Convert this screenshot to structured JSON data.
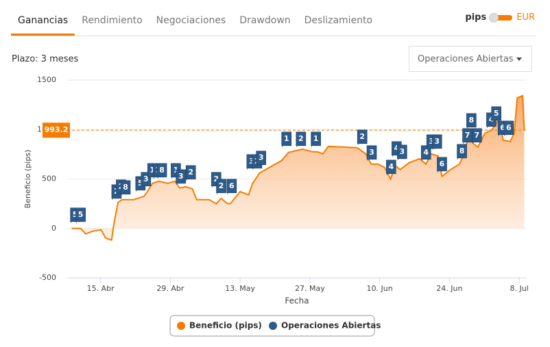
{
  "tabs": [
    "Ganancias",
    "Rendimiento",
    "Negociaciones",
    "Drawdown",
    "Deslizamiento"
  ],
  "toggle": {
    "left": "pips",
    "right": "EUR"
  },
  "period": {
    "label": "Plazo:",
    "value": "3 meses"
  },
  "dropdown": "Operaciones Abiertas",
  "chart_data": {
    "type": "area",
    "xlabel": "Fecha",
    "ylabel": "Beneficio (pips)",
    "x": [
      99.2,
      101,
      102,
      103.4,
      105.1,
      106,
      107.2,
      107.6,
      108.5,
      109.3,
      111.6,
      113.7,
      114.4,
      115.4,
      116.7,
      118.5,
      119.9,
      120.9,
      122,
      123.4,
      124.3,
      126.8,
      128.2,
      129.2,
      130.3,
      131,
      133,
      134.7,
      135.5,
      136.9,
      139.3,
      141.3,
      142.7,
      145.5,
      147.5,
      148.5,
      149.6,
      150.7,
      156.5,
      158.2,
      159.3,
      160.7,
      162,
      163.2,
      164.1,
      165.1,
      166.9,
      169,
      170.3,
      171.3,
      172.7,
      173.5,
      175.2,
      177,
      178,
      178.9,
      179.8,
      180.7,
      182.1,
      183.5,
      184.9,
      185.8,
      187.2,
      188,
      188.6,
      189.7,
      190
    ],
    "series": [
      {
        "name": "Beneficio (pips)",
        "color": "#f57c00",
        "values": [
          0,
          0,
          -55,
          -28,
          -14,
          -97,
          -118,
          28,
          263,
          290,
          290,
          325,
          373,
          456,
          477,
          456,
          477,
          408,
          422,
          401,
          290,
          290,
          249,
          304,
          256,
          249,
          373,
          339,
          456,
          560,
          629,
          685,
          768,
          802,
          775,
          775,
          754,
          830,
          816,
          754,
          650,
          650,
          615,
          498,
          636,
          595,
          664,
          705,
          650,
          754,
          733,
          525,
          595,
          650,
          754,
          961,
          857,
          823,
          961,
          996,
          1100,
          892,
          878,
          961,
          1321,
          1342,
          996
        ]
      }
    ],
    "flags": {
      "name": "Operaciones Abiertas",
      "color": "#2d5b8a",
      "x": [
        99.9,
        101,
        108.2,
        109.1,
        110,
        113,
        114.1,
        115.4,
        116.5,
        117.3,
        120.1,
        121.1,
        123.1,
        128.2,
        129.2,
        131.3,
        135.3,
        136.4,
        137.2,
        142.3,
        145.2,
        148.2,
        157.5,
        159.4,
        163.3,
        164.4,
        165.5,
        170.3,
        171.4,
        172.5,
        173.5,
        177.5,
        178.6,
        179.4,
        180.5,
        183.4,
        184.4,
        185.7,
        186.9
      ],
      "values": [
        138,
        138,
        373,
        422,
        415,
        456,
        498,
        588,
        588,
        588,
        588,
        525,
        567,
        498,
        429,
        429,
        678,
        678,
        713,
        906,
        906,
        906,
        927,
        768,
        622,
        809,
        774,
        768,
        878,
        878,
        650,
        781,
        941,
        1093,
        941,
        1100,
        1162,
        1017,
        1017
      ],
      "labels": [
        "5",
        "5",
        "2",
        "2",
        "8",
        "5",
        "3",
        "1",
        "1",
        "8",
        "1",
        "3",
        "2",
        "2",
        "2",
        "6",
        "3",
        "2",
        "3",
        "1",
        "2",
        "1",
        "2",
        "3",
        "4",
        "4",
        "3",
        "4",
        "3",
        "3",
        "6",
        "8",
        "7",
        "8",
        "7",
        "4",
        "5",
        "6",
        "6"
      ]
    },
    "reference": {
      "value": 993.2,
      "label": "993.2",
      "color": "#f57c00"
    },
    "xlim": [
      98.3,
      190.5
    ],
    "xticks": [
      {
        "value": 105,
        "label": "15. Abr"
      },
      {
        "value": 119,
        "label": "29. Abr"
      },
      {
        "value": 133,
        "label": "13. May"
      },
      {
        "value": 147,
        "label": "27. May"
      },
      {
        "value": 161,
        "label": "10. Jun"
      },
      {
        "value": 175,
        "label": "24. Jun"
      },
      {
        "value": 189,
        "label": "8. Jul"
      }
    ],
    "ylim": [
      -500,
      1500
    ],
    "yticks": [
      -500,
      0,
      500,
      1000,
      1500
    ],
    "grid": true
  }
}
